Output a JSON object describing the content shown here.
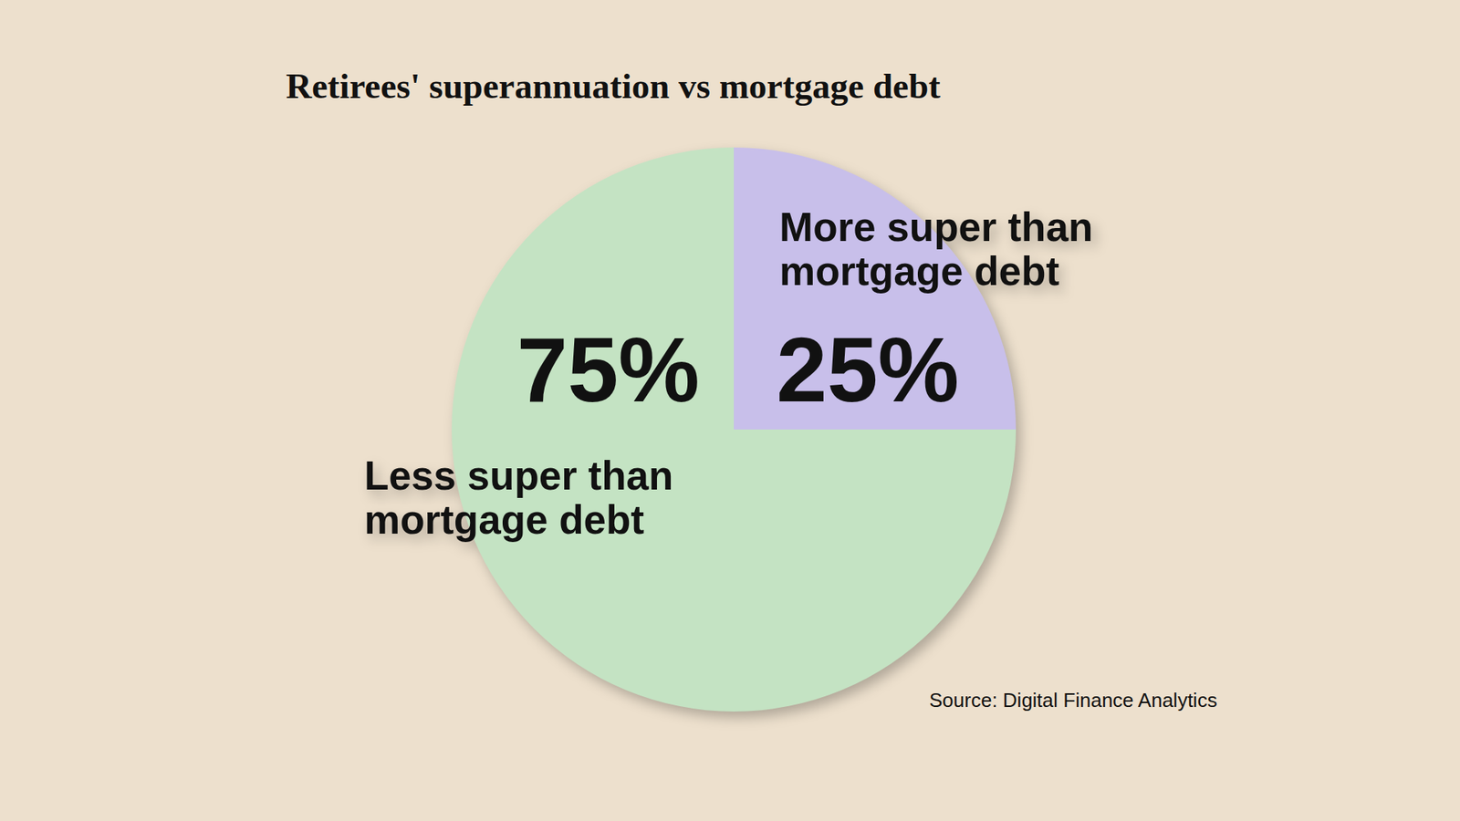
{
  "chart_data": {
    "type": "pie",
    "title": "Retirees' superannuation vs mortgage debt",
    "categories": [
      "More super than mortgage debt",
      "Less super than mortgage debt"
    ],
    "values": [
      25,
      75
    ],
    "value_labels": [
      "25%",
      "75%"
    ],
    "colors": [
      "#c8bfea",
      "#c4e3c3"
    ],
    "data_labels": true,
    "source": "Source: Digital Finance Analytics"
  }
}
